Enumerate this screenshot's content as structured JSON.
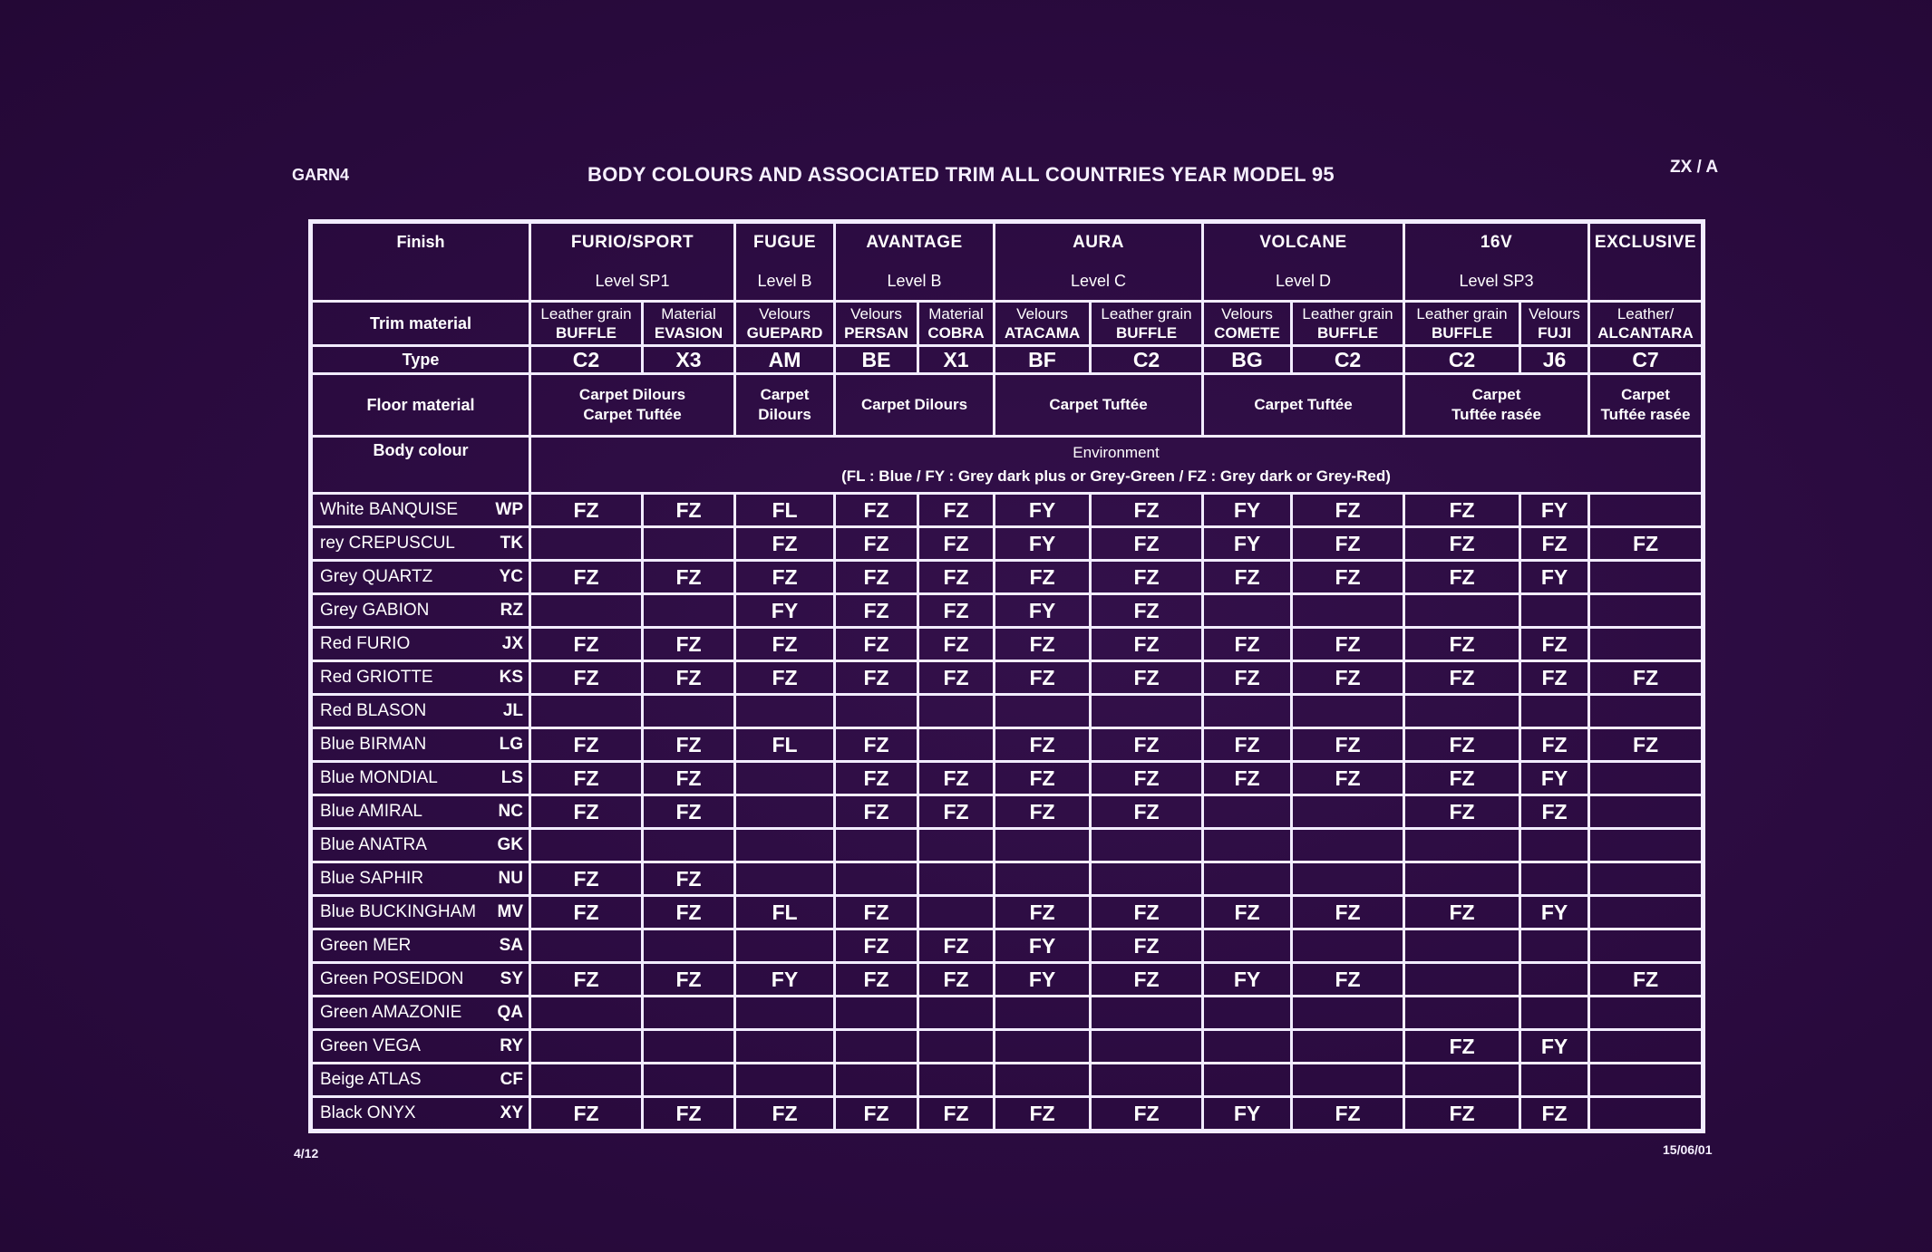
{
  "header": {
    "doc_code": "GARN4",
    "title": "BODY COLOURS AND ASSOCIATED TRIM ALL COUNTRIES YEAR MODEL  95",
    "ref": "ZX / A"
  },
  "footer": {
    "page": "4/12",
    "date": "15/06/01"
  },
  "labels": {
    "finish": "Finish",
    "trim_material": "Trim material",
    "type": "Type",
    "floor_material": "Floor material",
    "body_colour": "Body colour"
  },
  "finishes": [
    {
      "name": "FURIO/SPORT",
      "level": "Level SP1"
    },
    {
      "name": "FUGUE",
      "level": "Level B"
    },
    {
      "name": "AVANTAGE",
      "level": "Level B"
    },
    {
      "name": "AURA",
      "level": "Level C"
    },
    {
      "name": "VOLCANE",
      "level": "Level D"
    },
    {
      "name": "16V",
      "level": "Level SP3"
    },
    {
      "name": "EXCLUSIVE",
      "level": ""
    }
  ],
  "trims": [
    {
      "material": "Leather grain",
      "name": "BUFFLE",
      "type": "C2"
    },
    {
      "material": "Material",
      "name": "EVASION",
      "type": "X3"
    },
    {
      "material": "Velours",
      "name": "GUEPARD",
      "type": "AM"
    },
    {
      "material": "Velours",
      "name": "PERSAN",
      "type": "BE"
    },
    {
      "material": "Material",
      "name": "COBRA",
      "type": "X1"
    },
    {
      "material": "Velours",
      "name": "ATACAMA",
      "type": "BF"
    },
    {
      "material": "Leather grain",
      "name": "BUFFLE",
      "type": "C2"
    },
    {
      "material": "Velours",
      "name": "COMETE",
      "type": "BG"
    },
    {
      "material": "Leather grain",
      "name": "BUFFLE",
      "type": "C2"
    },
    {
      "material": "Leather grain",
      "name": "BUFFLE",
      "type": "C2"
    },
    {
      "material": "Velours",
      "name": "FUJI",
      "type": "J6"
    },
    {
      "material": "Leather/",
      "name": "ALCANTARA",
      "type": "C7"
    }
  ],
  "floor": [
    {
      "line1": "Carpet Dilours",
      "line2": "Carpet Tuftée"
    },
    {
      "line1": "Carpet",
      "line2": "Dilours"
    },
    {
      "line1": "Carpet Dilours",
      "line2": ""
    },
    {
      "line1": "Carpet Tuftée",
      "line2": ""
    },
    {
      "line1": "Carpet Tuftée",
      "line2": ""
    },
    {
      "line1": "Carpet",
      "line2": "Tuftée rasée"
    },
    {
      "line1": "Carpet",
      "line2": "Tuftée rasée"
    }
  ],
  "environment": {
    "title": "Environment",
    "legend": "(FL : Blue / FY : Grey dark plus or Grey-Green / FZ : Grey dark or Grey-Red)"
  },
  "rows": [
    {
      "name": "White BANQUISE",
      "code": "WP",
      "cells": [
        "FZ",
        "FZ",
        "FL",
        "FZ",
        "FZ",
        "FY",
        "FZ",
        "FY",
        "FZ",
        "FZ",
        "FY",
        ""
      ]
    },
    {
      "name": "rey CREPUSCUL",
      "code": "TK",
      "cells": [
        "",
        "",
        "FZ",
        "FZ",
        "FZ",
        "FY",
        "FZ",
        "FY",
        "FZ",
        "FZ",
        "FZ",
        "FZ"
      ]
    },
    {
      "name": "Grey QUARTZ",
      "code": "YC",
      "cells": [
        "FZ",
        "FZ",
        "FZ",
        "FZ",
        "FZ",
        "FZ",
        "FZ",
        "FZ",
        "FZ",
        "FZ",
        "FY",
        ""
      ]
    },
    {
      "name": "Grey GABION",
      "code": "RZ",
      "cells": [
        "",
        "",
        "FY",
        "FZ",
        "FZ",
        "FY",
        "FZ",
        "",
        "",
        "",
        "",
        ""
      ]
    },
    {
      "name": "Red FURIO",
      "code": "JX",
      "cells": [
        "FZ",
        "FZ",
        "FZ",
        "FZ",
        "FZ",
        "FZ",
        "FZ",
        "FZ",
        "FZ",
        "FZ",
        "FZ",
        ""
      ]
    },
    {
      "name": "Red GRIOTTE",
      "code": "KS",
      "cells": [
        "FZ",
        "FZ",
        "FZ",
        "FZ",
        "FZ",
        "FZ",
        "FZ",
        "FZ",
        "FZ",
        "FZ",
        "FZ",
        "FZ"
      ]
    },
    {
      "name": "Red BLASON",
      "code": "JL",
      "cells": [
        "",
        "",
        "",
        "",
        "",
        "",
        "",
        "",
        "",
        "",
        "",
        ""
      ]
    },
    {
      "name": "Blue BIRMAN",
      "code": "LG",
      "cells": [
        "FZ",
        "FZ",
        "FL",
        "FZ",
        "",
        "FZ",
        "FZ",
        "FZ",
        "FZ",
        "FZ",
        "FZ",
        "FZ"
      ]
    },
    {
      "name": "Blue MONDIAL",
      "code": "LS",
      "cells": [
        "FZ",
        "FZ",
        "",
        "FZ",
        "FZ",
        "FZ",
        "FZ",
        "FZ",
        "FZ",
        "FZ",
        "FY",
        ""
      ]
    },
    {
      "name": "Blue AMIRAL",
      "code": "NC",
      "cells": [
        "FZ",
        "FZ",
        "",
        "FZ",
        "FZ",
        "FZ",
        "FZ",
        "",
        "",
        "FZ",
        "FZ",
        ""
      ]
    },
    {
      "name": "Blue ANATRA",
      "code": "GK",
      "cells": [
        "",
        "",
        "",
        "",
        "",
        "",
        "",
        "",
        "",
        "",
        "",
        ""
      ]
    },
    {
      "name": "Blue SAPHIR",
      "code": "NU",
      "cells": [
        "FZ",
        "FZ",
        "",
        "",
        "",
        "",
        "",
        "",
        "",
        "",
        "",
        ""
      ]
    },
    {
      "name": "Blue BUCKINGHAM",
      "code": "MV",
      "cells": [
        "FZ",
        "FZ",
        "FL",
        "FZ",
        "",
        "FZ",
        "FZ",
        "FZ",
        "FZ",
        "FZ",
        "FY",
        ""
      ]
    },
    {
      "name": "Green MER",
      "code": "SA",
      "cells": [
        "",
        "",
        "",
        "FZ",
        "FZ",
        "FY",
        "FZ",
        "",
        "",
        "",
        "",
        ""
      ]
    },
    {
      "name": "Green POSEIDON",
      "code": "SY",
      "cells": [
        "FZ",
        "FZ",
        "FY",
        "FZ",
        "FZ",
        "FY",
        "FZ",
        "FY",
        "FZ",
        "",
        "",
        "FZ"
      ]
    },
    {
      "name": "Green AMAZONIE",
      "code": "QA",
      "cells": [
        "",
        "",
        "",
        "",
        "",
        "",
        "",
        "",
        "",
        "",
        "",
        ""
      ]
    },
    {
      "name": "Green VEGA",
      "code": "RY",
      "cells": [
        "",
        "",
        "",
        "",
        "",
        "",
        "",
        "",
        "",
        "FZ",
        "FY",
        ""
      ]
    },
    {
      "name": "Beige ATLAS",
      "code": "CF",
      "cells": [
        "",
        "",
        "",
        "",
        "",
        "",
        "",
        "",
        "",
        "",
        "",
        ""
      ]
    },
    {
      "name": "Black ONYX",
      "code": "XY",
      "cells": [
        "FZ",
        "FZ",
        "FZ",
        "FZ",
        "FZ",
        "FZ",
        "FZ",
        "FY",
        "FZ",
        "FZ",
        "FZ",
        ""
      ]
    }
  ],
  "colors": {
    "background": "#2b0b40",
    "lines": "#f2ecff",
    "text": "#ffffff"
  }
}
